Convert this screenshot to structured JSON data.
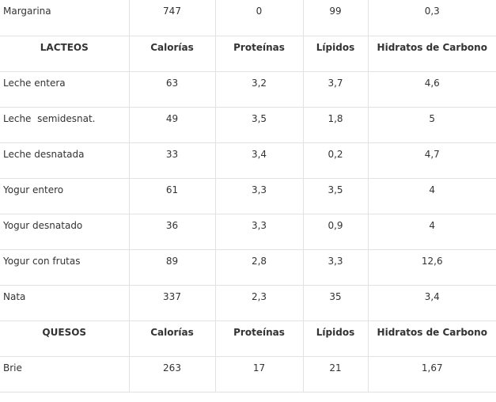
{
  "table": {
    "rows": [
      [
        "Margarina",
        "747",
        "0",
        "99",
        "0,3"
      ]
    ],
    "sections": [
      {
        "header": [
          "LACTEOS",
          "Calorías",
          "Proteínas",
          "Lípidos",
          "Hidratos de Carbono"
        ],
        "rows": [
          [
            "Leche entera",
            "63",
            "3,2",
            "3,7",
            "4,6"
          ],
          [
            "Leche  semidesnat.",
            "49",
            "3,5",
            "1,8",
            "5"
          ],
          [
            "Leche desnatada",
            "33",
            "3,4",
            "0,2",
            "4,7"
          ],
          [
            "Yogur entero",
            "61",
            "3,3",
            "3,5",
            "4"
          ],
          [
            "Yogur desnatado",
            "36",
            "3,3",
            "0,9",
            "4"
          ],
          [
            "Yogur con frutas",
            "89",
            "2,8",
            "3,3",
            "12,6"
          ],
          [
            "Nata",
            "337",
            "2,3",
            "35",
            "3,4"
          ]
        ]
      },
      {
        "header": [
          "QUESOS",
          "Calorías",
          "Proteínas",
          "Lípidos",
          "Hidratos de Carbono"
        ],
        "rows": [
          [
            "Brie",
            "263",
            "17",
            "21",
            "1,67"
          ]
        ]
      }
    ]
  }
}
